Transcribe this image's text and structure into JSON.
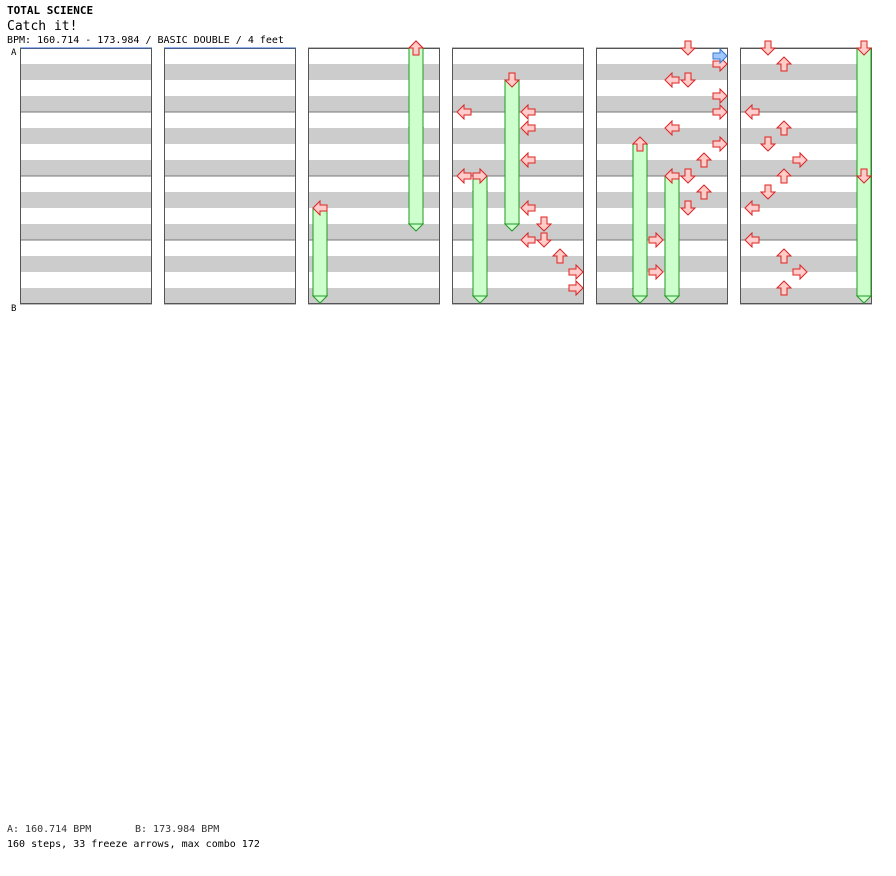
{
  "header": {
    "artist": "TOTAL SCIENCE",
    "song": "Catch it!",
    "bpm_line": "BPM: 160.714 - 173.984 / BASIC DOUBLE / 4 feet"
  },
  "markers": [
    {
      "label": "A",
      "measure": 0
    },
    {
      "label": "B",
      "measure": 4
    }
  ],
  "footer": {
    "bpm_a": "A: 160.714 BPM",
    "bpm_b": "B: 173.984 BPM",
    "stats": "160 steps, 33 freeze arrows, max combo 172"
  },
  "colors": {
    "stripe": "#cccccc",
    "border": "#555555",
    "red_fill": "#ffcccc",
    "red_stroke": "#dd2222",
    "blue_fill": "#a0c8ff",
    "blue_stroke": "#3377cc",
    "freeze_fill": "#ccffcc",
    "freeze_stroke": "#229922",
    "marker_line": "#3366cc"
  },
  "chart_data": {
    "type": "step-chart",
    "play_style": "BASIC DOUBLE",
    "difficulty": "4 feet",
    "bpm_range": [
      160.714,
      173.984
    ],
    "lanes": [
      "P1-left",
      "P1-down",
      "P1-up",
      "P1-right",
      "P2-left",
      "P2-down",
      "P2-up",
      "P2-right"
    ],
    "column_count": 6,
    "measures_per_column": 4,
    "beats_per_measure": 4,
    "total_steps": 160,
    "freeze_arrows": 33,
    "max_combo": 172,
    "notes": [
      {
        "beat": 52,
        "lane": 0
      },
      {
        "beat": 52,
        "lane": 4
      },
      {
        "beat": 53,
        "lane": 4
      },
      {
        "beat": 54,
        "lane": 3
      },
      {
        "beat": 55,
        "lane": 4
      },
      {
        "beat": 56,
        "lane": 0
      },
      {
        "beat": 57,
        "lane": 1
      },
      {
        "beat": 58,
        "lane": 4
      },
      {
        "beat": 59,
        "lane": 5
      },
      {
        "beat": 60,
        "lane": 4
      },
      {
        "beat": 60,
        "lane": 5
      },
      {
        "beat": 61,
        "lane": 6
      },
      {
        "beat": 62,
        "lane": 7
      },
      {
        "beat": 63,
        "lane": 7
      },
      {
        "beat": 64,
        "lane": 5
      },
      {
        "beat": 65,
        "lane": 7
      },
      {
        "beat": 66,
        "lane": 5
      },
      {
        "beat": 64.5,
        "lane": 7
      },
      {
        "beat": 66,
        "lane": 4
      },
      {
        "beat": 67,
        "lane": 7
      },
      {
        "beat": 68,
        "lane": 7
      },
      {
        "beat": 69,
        "lane": 4
      },
      {
        "beat": 70,
        "lane": 7
      },
      {
        "beat": 71,
        "lane": 6
      },
      {
        "beat": 72,
        "lane": 5
      },
      {
        "beat": 73,
        "lane": 6
      },
      {
        "beat": 74,
        "lane": 5
      },
      {
        "beat": 75,
        "lane": 4
      },
      {
        "beat": 76,
        "lane": 3
      },
      {
        "beat": 77,
        "lane": 4
      },
      {
        "beat": 78,
        "lane": 3
      },
      {
        "beat": 79,
        "lane": 2
      },
      {
        "beat": 80,
        "lane": 1
      },
      {
        "beat": 81,
        "lane": 2
      },
      {
        "beat": 84,
        "lane": 0
      },
      {
        "beat": 85,
        "lane": 2
      },
      {
        "beat": 86,
        "lane": 1
      },
      {
        "beat": 87,
        "lane": 3
      },
      {
        "beat": 88,
        "lane": 2
      },
      {
        "beat": 89,
        "lane": 1
      },
      {
        "beat": 90,
        "lane": 0
      },
      {
        "beat": 92,
        "lane": 0
      },
      {
        "beat": 93,
        "lane": 2
      },
      {
        "beat": 94,
        "lane": 3
      },
      {
        "beat": 95,
        "lane": 2
      },
      {
        "beat": 96,
        "lane": 0
      },
      {
        "beat": 97,
        "lane": 1
      },
      {
        "beat": 98,
        "lane": 3
      },
      {
        "beat": 100,
        "lane": 2
      },
      {
        "beat": 101,
        "lane": 4
      },
      {
        "beat": 102,
        "lane": 3
      },
      {
        "beat": 104,
        "lane": 4
      },
      {
        "beat": 105,
        "lane": 1
      },
      {
        "beat": 106,
        "lane": 3
      },
      {
        "beat": 107,
        "lane": 4
      }
    ]
  }
}
